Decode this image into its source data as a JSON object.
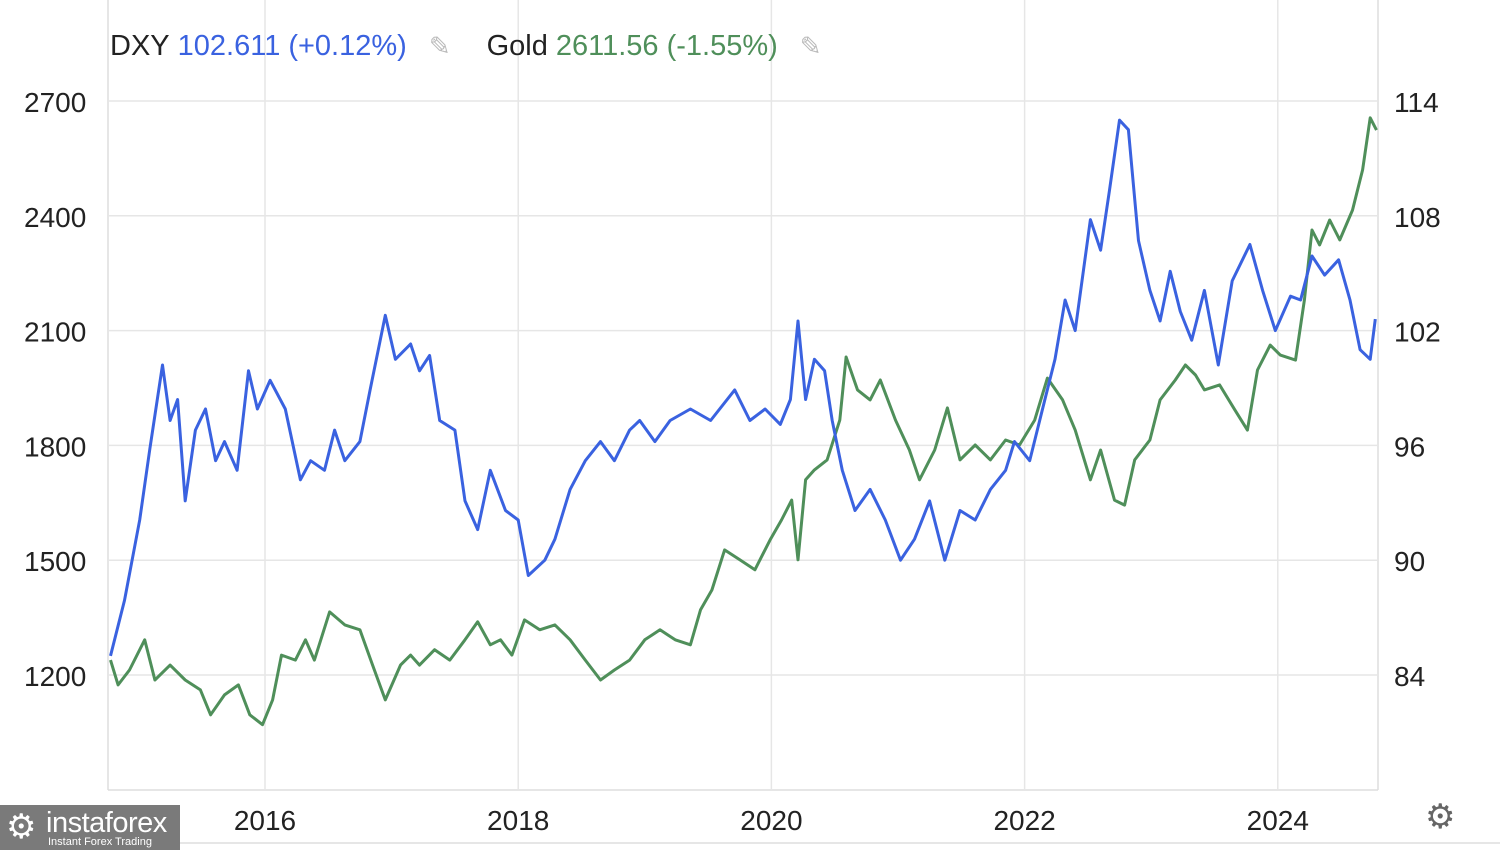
{
  "legend": {
    "dxy": {
      "name": "DXY",
      "value": "102.611",
      "change": "(+0.12%)",
      "edit_icon": "pencil-icon"
    },
    "gold": {
      "name": "Gold",
      "value": "2611.56",
      "change": "(-1.55%)",
      "edit_icon": "pencil-icon"
    }
  },
  "logo": {
    "name": "instaforex",
    "tagline": "Instant Forex Trading"
  },
  "settings_icon": "gear-icon",
  "chart_data": {
    "type": "line",
    "title": "",
    "xlabel": "",
    "x_ticks": [
      "2016",
      "2018",
      "2020",
      "2022",
      "2024"
    ],
    "x_tick_values": [
      2016,
      2018,
      2020,
      2022,
      2024
    ],
    "xlim": [
      2014.75,
      2024.8
    ],
    "y_left": {
      "label": "Gold",
      "ticks": [
        "2700",
        "2400",
        "2100",
        "1800",
        "1500",
        "1200"
      ],
      "tick_values": [
        2700,
        2400,
        2100,
        1800,
        1500,
        1200
      ],
      "ylim": [
        850,
        2700
      ]
    },
    "y_right": {
      "label": "DXY",
      "ticks": [
        "114",
        "108",
        "102",
        "96",
        "90",
        "84"
      ],
      "tick_values": [
        114,
        108,
        102,
        96,
        90,
        84
      ],
      "ylim": [
        77,
        114
      ]
    },
    "grid": true,
    "legend_position": "top-left",
    "series": [
      {
        "name": "DXY",
        "axis": "right",
        "color": "#3a62e0",
        "x": [
          2014.78,
          2014.89,
          2015.01,
          2015.09,
          2015.19,
          2015.25,
          2015.31,
          2015.37,
          2015.45,
          2015.53,
          2015.61,
          2015.68,
          2015.78,
          2015.87,
          2015.94,
          2016.04,
          2016.16,
          2016.28,
          2016.36,
          2016.47,
          2016.55,
          2016.63,
          2016.75,
          2016.83,
          2016.95,
          2017.03,
          2017.15,
          2017.22,
          2017.3,
          2017.38,
          2017.5,
          2017.58,
          2017.68,
          2017.78,
          2017.9,
          2018.0,
          2018.08,
          2018.21,
          2018.29,
          2018.41,
          2018.53,
          2018.65,
          2018.76,
          2018.88,
          2018.96,
          2019.08,
          2019.2,
          2019.36,
          2019.52,
          2019.71,
          2019.83,
          2019.95,
          2020.07,
          2020.15,
          2020.21,
          2020.27,
          2020.34,
          2020.42,
          2020.48,
          2020.56,
          2020.66,
          2020.78,
          2020.9,
          2021.02,
          2021.13,
          2021.25,
          2021.37,
          2021.49,
          2021.61,
          2021.73,
          2021.85,
          2021.92,
          2022.04,
          2022.16,
          2022.24,
          2022.32,
          2022.4,
          2022.52,
          2022.6,
          2022.67,
          2022.75,
          2022.82,
          2022.9,
          2022.99,
          2023.07,
          2023.15,
          2023.23,
          2023.32,
          2023.42,
          2023.53,
          2023.64,
          2023.78,
          2023.88,
          2023.98,
          2024.1,
          2024.18,
          2024.27,
          2024.37,
          2024.48,
          2024.57,
          2024.65,
          2024.73,
          2024.77
        ],
        "y": [
          85.0,
          87.9,
          92.1,
          95.8,
          100.2,
          97.3,
          98.4,
          93.1,
          96.8,
          97.9,
          95.2,
          96.2,
          94.7,
          99.9,
          97.9,
          99.4,
          97.9,
          94.2,
          95.2,
          94.7,
          96.8,
          95.2,
          96.2,
          98.9,
          102.8,
          100.5,
          101.3,
          99.9,
          100.7,
          97.3,
          96.8,
          93.1,
          91.6,
          94.7,
          92.6,
          92.1,
          89.2,
          90.0,
          91.1,
          93.7,
          95.2,
          96.2,
          95.2,
          96.8,
          97.3,
          96.2,
          97.3,
          97.9,
          97.3,
          98.9,
          97.3,
          97.9,
          97.1,
          98.4,
          102.5,
          98.4,
          100.5,
          99.9,
          97.3,
          94.7,
          92.6,
          93.7,
          92.1,
          90.0,
          91.1,
          93.1,
          90.0,
          92.6,
          92.1,
          93.7,
          94.7,
          96.2,
          95.2,
          98.4,
          100.5,
          103.6,
          102.0,
          107.8,
          106.2,
          109.3,
          113.0,
          112.5,
          106.7,
          104.1,
          102.5,
          105.1,
          103.0,
          101.5,
          104.1,
          100.2,
          104.6,
          106.5,
          104.1,
          102.0,
          103.8,
          103.6,
          105.9,
          104.9,
          105.7,
          103.6,
          101.0,
          100.5,
          102.6
        ]
      },
      {
        "name": "Gold",
        "axis": "left",
        "color": "#4f8f5a",
        "x": [
          2014.78,
          2014.84,
          2014.93,
          2015.05,
          2015.13,
          2015.25,
          2015.37,
          2015.49,
          2015.57,
          2015.68,
          2015.79,
          2015.88,
          2015.98,
          2016.06,
          2016.13,
          2016.24,
          2016.32,
          2016.39,
          2016.51,
          2016.63,
          2016.75,
          2016.85,
          2016.95,
          2017.07,
          2017.15,
          2017.22,
          2017.34,
          2017.46,
          2017.58,
          2017.68,
          2017.78,
          2017.86,
          2017.95,
          2018.05,
          2018.17,
          2018.29,
          2018.41,
          2018.53,
          2018.65,
          2018.76,
          2018.88,
          2019.0,
          2019.12,
          2019.24,
          2019.36,
          2019.44,
          2019.53,
          2019.63,
          2019.75,
          2019.87,
          2019.99,
          2020.08,
          2020.16,
          2020.21,
          2020.27,
          2020.34,
          2020.44,
          2020.54,
          2020.59,
          2020.68,
          2020.78,
          2020.86,
          2020.98,
          2021.09,
          2021.17,
          2021.29,
          2021.39,
          2021.49,
          2021.61,
          2021.73,
          2021.85,
          2021.96,
          2022.08,
          2022.18,
          2022.3,
          2022.4,
          2022.52,
          2022.6,
          2022.71,
          2022.79,
          2022.87,
          2022.99,
          2023.07,
          2023.19,
          2023.27,
          2023.35,
          2023.42,
          2023.54,
          2023.66,
          2023.76,
          2023.84,
          2023.94,
          2024.02,
          2024.14,
          2024.21,
          2024.27,
          2024.33,
          2024.41,
          2024.49,
          2024.59,
          2024.67,
          2024.73,
          2024.78
        ],
        "y": [
          1239,
          1174,
          1213,
          1292,
          1187,
          1226,
          1187,
          1161,
          1096,
          1148,
          1174,
          1096,
          1070,
          1135,
          1252,
          1239,
          1292,
          1239,
          1365,
          1331,
          1318,
          1226,
          1135,
          1226,
          1252,
          1226,
          1266,
          1239,
          1292,
          1339,
          1279,
          1292,
          1252,
          1344,
          1318,
          1331,
          1292,
          1239,
          1187,
          1213,
          1239,
          1292,
          1318,
          1292,
          1279,
          1370,
          1422,
          1527,
          1501,
          1475,
          1553,
          1605,
          1657,
          1501,
          1710,
          1736,
          1762,
          1866,
          2031,
          1945,
          1919,
          1971,
          1866,
          1788,
          1710,
          1788,
          1898,
          1762,
          1801,
          1762,
          1814,
          1801,
          1866,
          1976,
          1919,
          1840,
          1710,
          1788,
          1657,
          1644,
          1762,
          1814,
          1919,
          1971,
          2010,
          1984,
          1945,
          1958,
          1893,
          1840,
          1997,
          2062,
          2036,
          2023,
          2180,
          2363,
          2324,
          2389,
          2337,
          2415,
          2520,
          2656,
          2624
        ]
      }
    ]
  }
}
